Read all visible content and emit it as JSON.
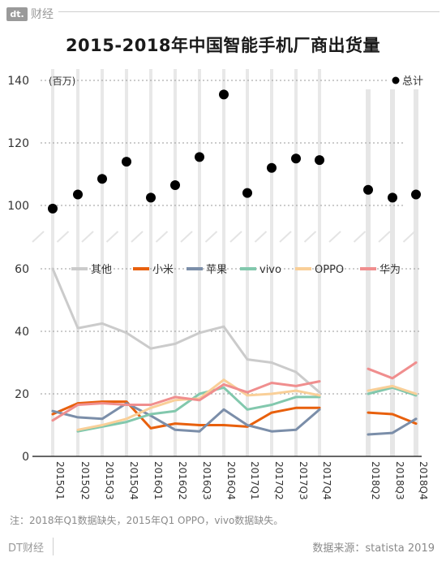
{
  "header": {
    "logo_text": "dt.",
    "brand_name": "财经"
  },
  "title": "2015-2018年中国智能手机厂商出货量",
  "chart_data": [
    {
      "type": "scatter",
      "unit_label": "(百万)",
      "legend": "总计",
      "x": [
        "2015Q1",
        "2015Q2",
        "2015Q3",
        "2015Q4",
        "2016Q1",
        "2016Q2",
        "2016Q3",
        "2016Q4",
        "2017Q1",
        "2017Q2",
        "2017Q3",
        "2017Q4",
        "2018Q2",
        "2018Q3",
        "2018Q4"
      ],
      "values": [
        99,
        103.5,
        108.5,
        114,
        102.5,
        106.5,
        115.5,
        135.5,
        104,
        112,
        115,
        114.5,
        105,
        102.5,
        103.5
      ],
      "ylim": [
        97,
        141
      ],
      "yticks": [
        100,
        120,
        140
      ],
      "color": "#000000"
    },
    {
      "type": "line",
      "x": [
        "2015Q1",
        "2015Q2",
        "2015Q3",
        "2015Q4",
        "2016Q1",
        "2016Q2",
        "2016Q3",
        "2016Q4",
        "2017Q1",
        "2017Q2",
        "2017Q3",
        "2017Q4",
        "2018Q2",
        "2018Q3",
        "2018Q4"
      ],
      "ylim": [
        0,
        63
      ],
      "yticks": [
        0,
        20,
        40,
        60
      ],
      "series": [
        {
          "name": "其他",
          "color": "#cbcbcb",
          "values": [
            60,
            41,
            42.5,
            39.5,
            34.5,
            36,
            39.5,
            41.5,
            31,
            30,
            27,
            20.5,
            null,
            null,
            null
          ]
        },
        {
          "name": "小米",
          "color": "#e8600d",
          "values": [
            13.5,
            17,
            17.5,
            17.5,
            9,
            10.5,
            10,
            10,
            9.5,
            14,
            15.5,
            15.5,
            14,
            13.5,
            10.5
          ]
        },
        {
          "name": "苹果",
          "color": "#7b8ea9",
          "values": [
            14.5,
            12.5,
            12,
            17,
            13,
            8.5,
            8,
            15,
            10,
            8,
            8.5,
            15,
            7,
            7.5,
            12
          ]
        },
        {
          "name": "vivo",
          "color": "#82c8ad",
          "values": [
            null,
            8,
            9.5,
            11,
            13.5,
            14.5,
            20,
            22,
            15,
            16.5,
            19,
            19,
            20,
            22,
            19.5
          ]
        },
        {
          "name": "OPPO",
          "color": "#f9cf98",
          "values": [
            null,
            8.5,
            10,
            12,
            15.5,
            18,
            18.5,
            24.5,
            19.5,
            20,
            21,
            19.5,
            21,
            22.5,
            20
          ]
        },
        {
          "name": "华为",
          "color": "#f08e8e",
          "values": [
            11.5,
            16.5,
            17,
            16.5,
            16.5,
            19,
            18,
            23,
            20.5,
            23.5,
            22.5,
            24,
            28,
            25,
            30
          ]
        }
      ]
    }
  ],
  "note": "注：2018年Q1数据缺失，2015年Q1 OPPO，vivo数据缺失。",
  "footer": {
    "brand": "DT财经",
    "source": "数据来源：statista 2019"
  }
}
